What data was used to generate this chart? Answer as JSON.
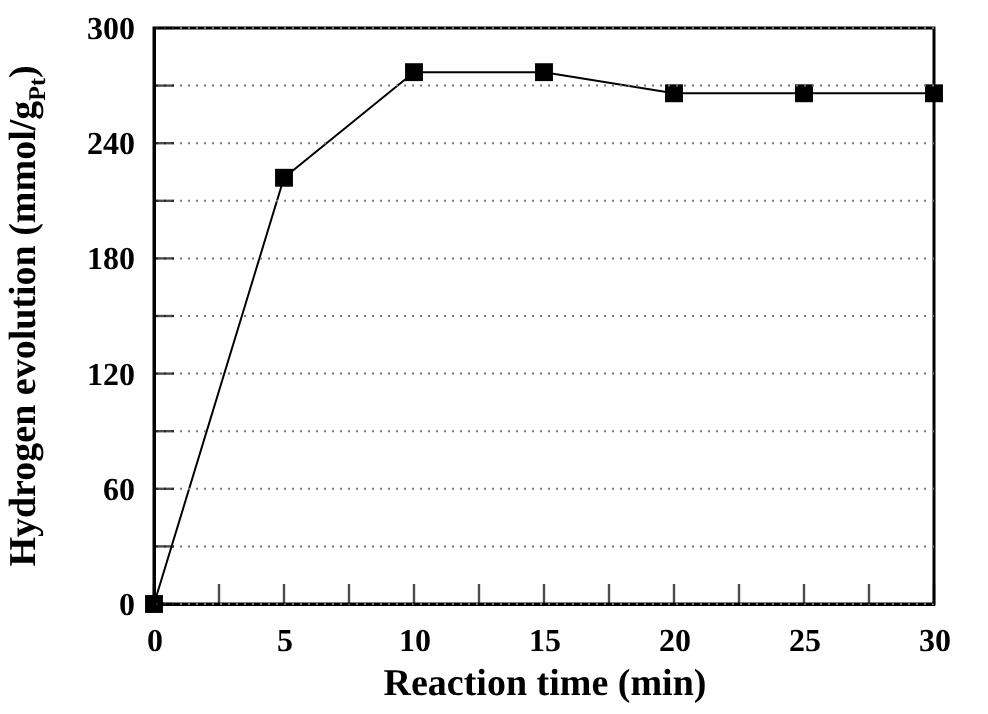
{
  "chart_data": {
    "type": "line",
    "xlabel": "Reaction time (min)",
    "ylabel": "Hydrogen evolution (mmol/g$_{Pt}$)",
    "x": [
      0,
      5,
      10,
      15,
      20,
      25,
      30
    ],
    "series": [
      {
        "color": "#000000",
        "values": [
          0,
          222,
          277,
          277,
          266,
          266,
          266
        ]
      }
    ],
    "xlim": [
      0,
      30
    ],
    "ylim": [
      0,
      300
    ],
    "xticks": [
      0,
      {
        "value": 2.5,
        "label": null
      },
      5,
      {
        "value": 7.5,
        "label": null
      },
      10,
      {
        "value": 12.5,
        "label": null
      },
      15,
      {
        "value": 17.5,
        "label": null
      },
      20,
      {
        "value": 22.5,
        "label": null
      },
      25,
      {
        "value": 27.5,
        "label": null
      },
      30
    ],
    "yticks": [
      0,
      {
        "value": 30,
        "label": null
      },
      60,
      {
        "value": 90,
        "label": null
      },
      120,
      {
        "value": 150,
        "label": null
      },
      180,
      {
        "value": 210,
        "label": null
      },
      240,
      {
        "value": 270,
        "label": null
      },
      300
    ],
    "grid": "y",
    "marker": "square",
    "line_style": "solid"
  }
}
